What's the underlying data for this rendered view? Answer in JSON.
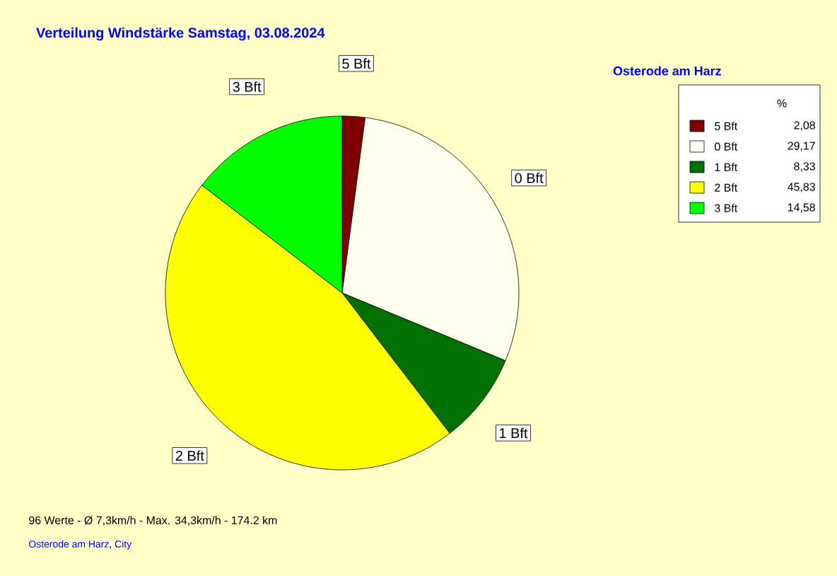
{
  "chart_data": {
    "type": "pie",
    "title": "Verteilung Windstärke  Samstag, 03.08.2024",
    "subtitle": "Osterode am Harz",
    "categories": [
      "5 Bft",
      "0 Bft",
      "1 Bft",
      "2 Bft",
      "3 Bft"
    ],
    "values": [
      2.08,
      29.17,
      8.33,
      45.83,
      14.58
    ],
    "value_labels": [
      "2,08",
      "29,17",
      "8,33",
      "45,83",
      "14,58"
    ],
    "colors": [
      "#800000",
      "#ffffee",
      "#007000",
      "#ffff00",
      "#00ff00"
    ],
    "legend": "top right",
    "legend_title": "%",
    "annotations": [
      "96 Werte   -   Ø 7,3km/h  -  Max. 34,3km/h   -   174.2 km",
      "Osterode am Harz, City"
    ]
  }
}
